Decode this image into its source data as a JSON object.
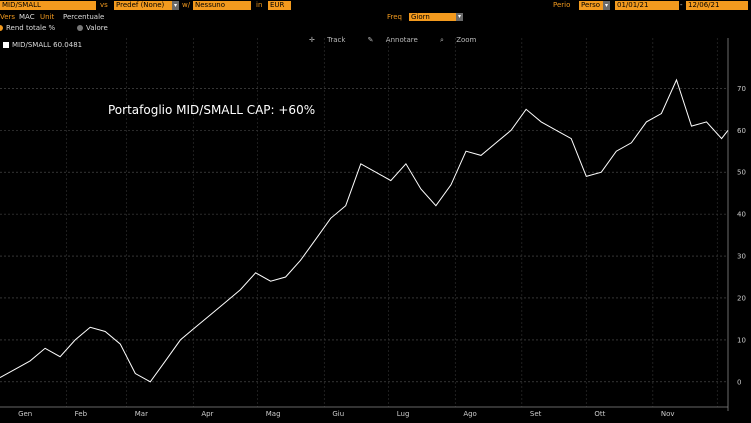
{
  "header": {
    "security": "MID/SMALL",
    "vs_label": "vs",
    "vs_value": "Predef (None)",
    "w_label": "w/",
    "w_value": "Nessuno",
    "in_label": "in",
    "currency": "EUR",
    "period_label": "Perio",
    "period_value": "Perso",
    "start_date": "01/01/21",
    "end_date": "12/06/21"
  },
  "row2": {
    "vers": "Vers",
    "mac": "MAC",
    "unit": "Unit",
    "unit_value": "Percentuale",
    "freq_label": "Freq",
    "freq_value": "Giorn"
  },
  "row3": {
    "option1": "Rend totale %",
    "option2": "Valore"
  },
  "toolbar": {
    "track": "Track",
    "annotate": "Annotare",
    "zoom": "Zoom"
  },
  "legend": {
    "series_label": "MID/SMALL 60.0481",
    "color": "#ffffff"
  },
  "annotation": "Portafoglio MID/SMALL CAP: +60%",
  "chart_data": {
    "type": "line",
    "title": "",
    "xlabel": "",
    "ylabel": "",
    "ylim": [
      -6,
      82
    ],
    "yticks": [
      "0",
      "10",
      "20",
      "30",
      "40",
      "50",
      "60",
      "70"
    ],
    "xticks": [
      "Gen",
      "Feb",
      "Mar",
      "Apr",
      "Mag",
      "Giu",
      "Lug",
      "Ago",
      "Set",
      "Ott",
      "Nov"
    ],
    "series": [
      {
        "name": "MID/SMALL",
        "color": "#ffffff",
        "x": [
          "2021-01-01",
          "2021-01-08",
          "2021-01-15",
          "2021-01-22",
          "2021-01-29",
          "2021-02-05",
          "2021-02-12",
          "2021-02-19",
          "2021-02-26",
          "2021-03-05",
          "2021-03-12",
          "2021-03-19",
          "2021-03-26",
          "2021-04-02",
          "2021-04-09",
          "2021-04-16",
          "2021-04-23",
          "2021-04-30",
          "2021-05-07",
          "2021-05-14",
          "2021-05-21",
          "2021-05-28",
          "2021-06-04",
          "2021-06-11",
          "2021-06-18",
          "2021-06-25",
          "2021-07-02",
          "2021-07-09",
          "2021-07-16",
          "2021-07-23",
          "2021-07-30",
          "2021-08-06",
          "2021-08-13",
          "2021-08-20",
          "2021-08-27",
          "2021-09-03",
          "2021-09-10",
          "2021-09-17",
          "2021-09-24",
          "2021-10-01",
          "2021-10-08",
          "2021-10-15",
          "2021-10-22",
          "2021-10-29",
          "2021-11-05",
          "2021-11-12",
          "2021-11-19",
          "2021-11-26",
          "2021-12-03",
          "2021-12-06"
        ],
        "y": [
          1,
          3,
          5,
          8,
          6,
          10,
          13,
          12,
          9,
          2,
          0,
          5,
          10,
          13,
          16,
          19,
          22,
          26,
          24,
          25,
          29,
          34,
          39,
          42,
          52,
          50,
          48,
          52,
          46,
          42,
          47,
          55,
          54,
          57,
          60,
          65,
          62,
          60,
          58,
          49,
          50,
          55,
          57,
          62,
          64,
          72,
          61,
          62,
          58,
          60
        ]
      }
    ]
  }
}
